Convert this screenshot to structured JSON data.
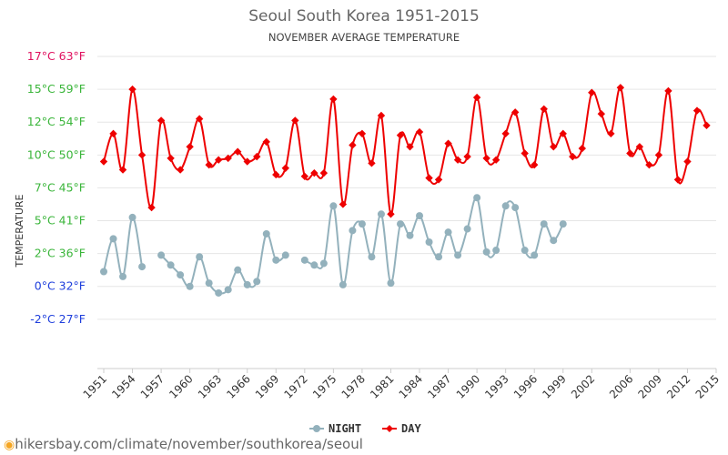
{
  "title": "Seoul South Korea 1951-2015",
  "subtitle": "NOVEMBER AVERAGE TEMPERATURE",
  "footer_url": "hikersbay.com/climate/november/southkorea/seoul",
  "colors": {
    "night": "#93b1bc",
    "day": "#ee0000",
    "grid": "#e6e6e6",
    "tick_hot": "#e0115f",
    "tick_mid": "#3ab53a",
    "tick_cold": "#1f3fdc"
  },
  "chart_data": {
    "type": "line",
    "title": "Seoul South Korea 1951-2015",
    "subtitle": "NOVEMBER AVERAGE TEMPERATURE",
    "ylabel": "TEMPERATURE",
    "xlabel": "",
    "ylim": [
      -2,
      17
    ],
    "y_ticks": [
      {
        "value": 17,
        "label": "17°C 63°F",
        "color": "tick_hot"
      },
      {
        "value": 15,
        "label": "15°C 59°F",
        "color": "tick_mid"
      },
      {
        "value": 13,
        "label": "12°C 54°F",
        "color": "tick_mid"
      },
      {
        "value": 11,
        "label": "10°C 50°F",
        "color": "tick_mid"
      },
      {
        "value": 9,
        "label": "7°C 45°F",
        "color": "tick_mid"
      },
      {
        "value": 7,
        "label": "5°C 41°F",
        "color": "tick_mid"
      },
      {
        "value": 5,
        "label": "2°C 36°F",
        "color": "tick_mid"
      },
      {
        "value": 3,
        "label": "0°C 32°F",
        "color": "tick_cold"
      },
      {
        "value": 1,
        "label": "-2°C 27°F",
        "color": "tick_cold"
      }
    ],
    "x_ticks": [
      "1951",
      "1954",
      "1957",
      "1960",
      "1963",
      "1966",
      "1969",
      "1972",
      "1975",
      "1978",
      "1981",
      "1984",
      "1987",
      "1990",
      "1993",
      "1996",
      "1999",
      "2002",
      "2006",
      "2009",
      "2012",
      "2015"
    ],
    "legend": {
      "position": "bottom-center",
      "items": [
        "NIGHT",
        "DAY"
      ]
    },
    "grid": true,
    "series": [
      {
        "name": "DAY",
        "color": "day",
        "marker": "diamond",
        "values": [
          [
            1951,
            10.6
          ],
          [
            1952,
            12.3
          ],
          [
            1953,
            10.1
          ],
          [
            1954,
            15.0
          ],
          [
            1955,
            11.0
          ],
          [
            1956,
            7.8
          ],
          [
            1957,
            13.1
          ],
          [
            1958,
            10.8
          ],
          [
            1959,
            10.1
          ],
          [
            1960,
            11.5
          ],
          [
            1961,
            13.2
          ],
          [
            1962,
            10.4
          ],
          [
            1963,
            10.7
          ],
          [
            1964,
            10.8
          ],
          [
            1965,
            11.2
          ],
          [
            1966,
            10.6
          ],
          [
            1967,
            10.9
          ],
          [
            1968,
            11.8
          ],
          [
            1969,
            9.8
          ],
          [
            1970,
            10.2
          ],
          [
            1971,
            13.1
          ],
          [
            1972,
            9.7
          ],
          [
            1973,
            9.9
          ],
          [
            1974,
            9.9
          ],
          [
            1975,
            14.4
          ],
          [
            1976,
            8.0
          ],
          [
            1977,
            11.6
          ],
          [
            1978,
            12.3
          ],
          [
            1979,
            10.5
          ],
          [
            1980,
            13.4
          ],
          [
            1981,
            7.4
          ],
          [
            1982,
            12.2
          ],
          [
            1983,
            11.5
          ],
          [
            1984,
            12.4
          ],
          [
            1985,
            9.6
          ],
          [
            1986,
            9.5
          ],
          [
            1987,
            11.7
          ],
          [
            1988,
            10.7
          ],
          [
            1989,
            10.9
          ],
          [
            1990,
            14.5
          ],
          [
            1991,
            10.8
          ],
          [
            1992,
            10.7
          ],
          [
            1993,
            12.3
          ],
          [
            1994,
            13.6
          ],
          [
            1995,
            11.1
          ],
          [
            1996,
            10.4
          ],
          [
            1997,
            13.8
          ],
          [
            1998,
            11.5
          ],
          [
            1999,
            12.3
          ],
          [
            2000,
            10.9
          ],
          [
            2001,
            11.4
          ],
          [
            2002,
            14.8
          ],
          [
            2003,
            13.5
          ],
          [
            2004,
            12.3
          ],
          [
            2005,
            15.1
          ],
          [
            2006,
            11.1
          ],
          [
            2007,
            11.5
          ],
          [
            2008,
            10.4
          ],
          [
            2009,
            11.0
          ],
          [
            2010,
            14.9
          ],
          [
            2011,
            9.5
          ],
          [
            2012,
            10.6
          ],
          [
            2013,
            13.7
          ],
          [
            2014,
            12.8
          ]
        ]
      },
      {
        "name": "NIGHT",
        "color": "night",
        "marker": "circle",
        "segments": [
          [
            [
              1951,
              3.9
            ],
            [
              1952,
              5.9
            ],
            [
              1953,
              3.6
            ],
            [
              1954,
              7.2
            ],
            [
              1955,
              4.2
            ]
          ],
          [
            [
              1957,
              4.9
            ],
            [
              1958,
              4.3
            ],
            [
              1959,
              3.7
            ],
            [
              1960,
              3.0
            ],
            [
              1961,
              4.8
            ],
            [
              1962,
              3.2
            ],
            [
              1963,
              2.6
            ],
            [
              1964,
              2.8
            ],
            [
              1965,
              4.0
            ],
            [
              1966,
              3.1
            ],
            [
              1967,
              3.3
            ],
            [
              1968,
              6.2
            ],
            [
              1969,
              4.6
            ],
            [
              1970,
              4.9
            ]
          ],
          [
            [
              1972,
              4.6
            ],
            [
              1973,
              4.3
            ],
            [
              1974,
              4.4
            ],
            [
              1975,
              7.9
            ],
            [
              1976,
              3.1
            ],
            [
              1977,
              6.4
            ],
            [
              1978,
              6.8
            ],
            [
              1979,
              4.8
            ],
            [
              1980,
              7.4
            ],
            [
              1981,
              3.2
            ],
            [
              1982,
              6.8
            ],
            [
              1983,
              6.1
            ],
            [
              1984,
              7.3
            ],
            [
              1985,
              5.7
            ],
            [
              1986,
              4.8
            ],
            [
              1987,
              6.3
            ],
            [
              1988,
              4.9
            ],
            [
              1989,
              6.5
            ],
            [
              1990,
              8.4
            ],
            [
              1991,
              5.1
            ],
            [
              1992,
              5.2
            ],
            [
              1993,
              7.9
            ],
            [
              1994,
              7.8
            ],
            [
              1995,
              5.2
            ],
            [
              1996,
              4.9
            ],
            [
              1997,
              6.8
            ],
            [
              1998,
              5.8
            ],
            [
              1999,
              6.8
            ]
          ]
        ]
      }
    ]
  }
}
